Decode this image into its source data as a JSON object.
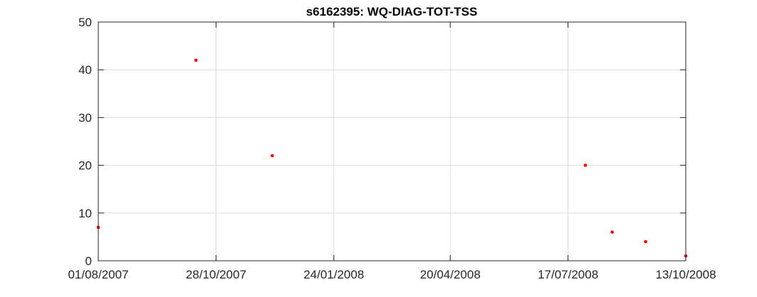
{
  "chart_data": {
    "type": "scatter",
    "title": "s6162395: WQ-DIAG-TOT-TSS",
    "xlabel": "",
    "ylabel": "",
    "x_is_date": true,
    "xlim": [
      "2007-08-01",
      "2008-10-13"
    ],
    "ylim": [
      0,
      50
    ],
    "x_ticks": [
      "2007-08-01",
      "2007-10-28",
      "2008-01-24",
      "2008-04-20",
      "2008-07-17",
      "2008-10-13"
    ],
    "x_tick_labels": [
      "01/08/2007",
      "28/10/2007",
      "24/01/2008",
      "20/04/2008",
      "17/07/2008",
      "13/10/2008"
    ],
    "y_ticks": [
      0,
      10,
      20,
      30,
      40,
      50
    ],
    "y_tick_labels": [
      "0",
      "10",
      "20",
      "30",
      "40",
      "50"
    ],
    "grid": true,
    "marker_color": "#ff0000",
    "points": [
      {
        "x": "2007-08-01",
        "y": 7
      },
      {
        "x": "2007-10-13",
        "y": 42
      },
      {
        "x": "2007-12-09",
        "y": 22
      },
      {
        "x": "2008-07-30",
        "y": 20
      },
      {
        "x": "2008-08-19",
        "y": 6
      },
      {
        "x": "2008-09-13",
        "y": 4
      },
      {
        "x": "2008-10-13",
        "y": 1
      }
    ]
  }
}
